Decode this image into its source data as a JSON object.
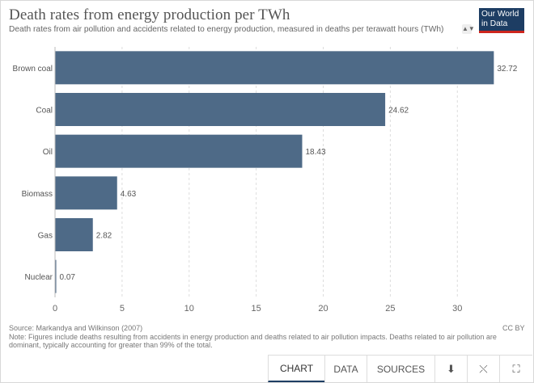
{
  "header": {
    "title": "Death rates from energy production per TWh",
    "subtitle": "Death rates from air pollution and accidents related to energy production, measured in deaths per terawatt hours (TWh)",
    "logo_line1": "Our World",
    "logo_line2": "in Data"
  },
  "chart_data": {
    "type": "bar",
    "orientation": "horizontal",
    "categories": [
      "Brown coal",
      "Coal",
      "Oil",
      "Biomass",
      "Gas",
      "Nuclear"
    ],
    "values": [
      32.72,
      24.62,
      18.43,
      4.63,
      2.82,
      0.07
    ],
    "value_labels": [
      "32.72",
      "24.62",
      "18.43",
      "4.63",
      "2.82",
      "0.07"
    ],
    "xlim": [
      0,
      33
    ],
    "xticks": [
      0,
      5,
      10,
      15,
      20,
      25,
      30
    ],
    "bar_color": "#4e6a87",
    "grid": "vertical dashed"
  },
  "footer": {
    "source": "Source: Markandya and Wilkinson (2007)",
    "note": "Note: Figures include deaths resulting from accidents in energy production and deaths related to air pollution impacts. Deaths related to air pollution are dominant, typically accounting for greater than 99% of the total.",
    "license": "CC BY"
  },
  "tabs": {
    "chart": "CHART",
    "data": "DATA",
    "sources": "SOURCES",
    "download_icon": "download-icon",
    "share_icon": "share-icon",
    "fullscreen_icon": "fullscreen-icon"
  },
  "colors": {
    "logo_bg": "#1d3d63",
    "logo_accent": "#ce261e"
  }
}
